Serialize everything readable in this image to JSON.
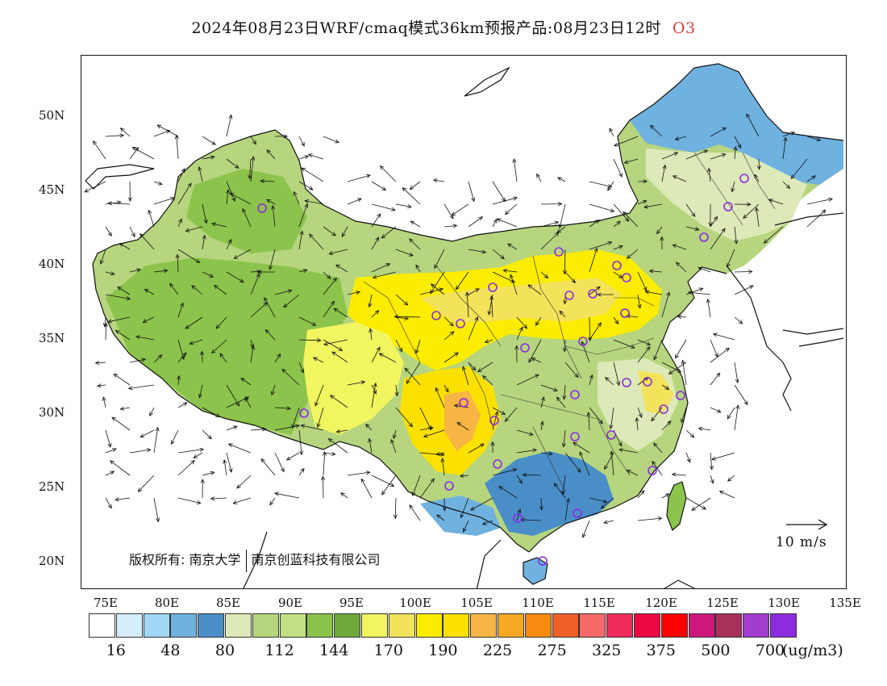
{
  "title": {
    "main": "2024年08月23日WRF/cmaq模式36km预报产品:08月23日12时",
    "species": "O3"
  },
  "axes": {
    "lat_labels": [
      "50N",
      "45N",
      "40N",
      "35N",
      "30N",
      "25N",
      "20N"
    ],
    "lon_labels": [
      "75E",
      "80E",
      "85E",
      "90E",
      "95E",
      "100E",
      "105E",
      "110E",
      "115E",
      "120E",
      "125E",
      "130E",
      "135E"
    ]
  },
  "legend": {
    "colors": [
      "#ffffff",
      "#d6eefb",
      "#a0d8f5",
      "#6fb2e0",
      "#4a8ec8",
      "#dde9b8",
      "#b6d57e",
      "#c3df84",
      "#8cc34c",
      "#6fa83a",
      "#f0f560",
      "#f3e35a",
      "#fbec00",
      "#fce100",
      "#f6b544",
      "#f7a825",
      "#f78a10",
      "#ee5f2a",
      "#f66a6a",
      "#f02a5a",
      "#ee0844",
      "#ff0000",
      "#cc187a",
      "#a8305a",
      "#a23ccf",
      "#8c2be0"
    ],
    "labels": [
      "16",
      "48",
      "80",
      "112",
      "144",
      "170",
      "190",
      "225",
      "275",
      "325",
      "375",
      "500",
      "700"
    ],
    "units": "(ug/m3)"
  },
  "copyright": {
    "prefix": "版权所有:",
    "org1": "南京大学",
    "org2": "南京创蓝科技有限公司"
  },
  "reference_vector": {
    "label": "10 m/s"
  }
}
